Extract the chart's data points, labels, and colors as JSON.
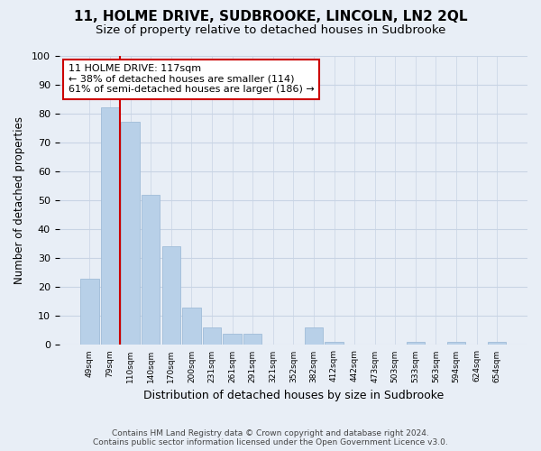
{
  "title": "11, HOLME DRIVE, SUDBROOKE, LINCOLN, LN2 2QL",
  "subtitle": "Size of property relative to detached houses in Sudbrooke",
  "xlabel": "Distribution of detached houses by size in Sudbrooke",
  "ylabel": "Number of detached properties",
  "bar_labels": [
    "49sqm",
    "79sqm",
    "110sqm",
    "140sqm",
    "170sqm",
    "200sqm",
    "231sqm",
    "261sqm",
    "291sqm",
    "321sqm",
    "352sqm",
    "382sqm",
    "412sqm",
    "442sqm",
    "473sqm",
    "503sqm",
    "533sqm",
    "563sqm",
    "594sqm",
    "624sqm",
    "654sqm"
  ],
  "bar_values": [
    23,
    82,
    77,
    52,
    34,
    13,
    6,
    4,
    4,
    0,
    0,
    6,
    1,
    0,
    0,
    0,
    1,
    0,
    1,
    0,
    1
  ],
  "bar_color": "#b8d0e8",
  "bar_edge_color": "#a0bcd8",
  "vline_color": "#cc0000",
  "annotation_title": "11 HOLME DRIVE: 117sqm",
  "annotation_line1": "← 38% of detached houses are smaller (114)",
  "annotation_line2": "61% of semi-detached houses are larger (186) →",
  "annotation_box_color": "#ffffff",
  "annotation_box_edgecolor": "#cc0000",
  "ylim": [
    0,
    100
  ],
  "yticks": [
    0,
    10,
    20,
    30,
    40,
    50,
    60,
    70,
    80,
    90,
    100
  ],
  "footer_line1": "Contains HM Land Registry data © Crown copyright and database right 2024.",
  "footer_line2": "Contains public sector information licensed under the Open Government Licence v3.0.",
  "bg_color": "#e8eef6",
  "plot_bg_color": "#e8eef6",
  "grid_color": "#c8d4e4",
  "title_fontsize": 11,
  "subtitle_fontsize": 9.5
}
